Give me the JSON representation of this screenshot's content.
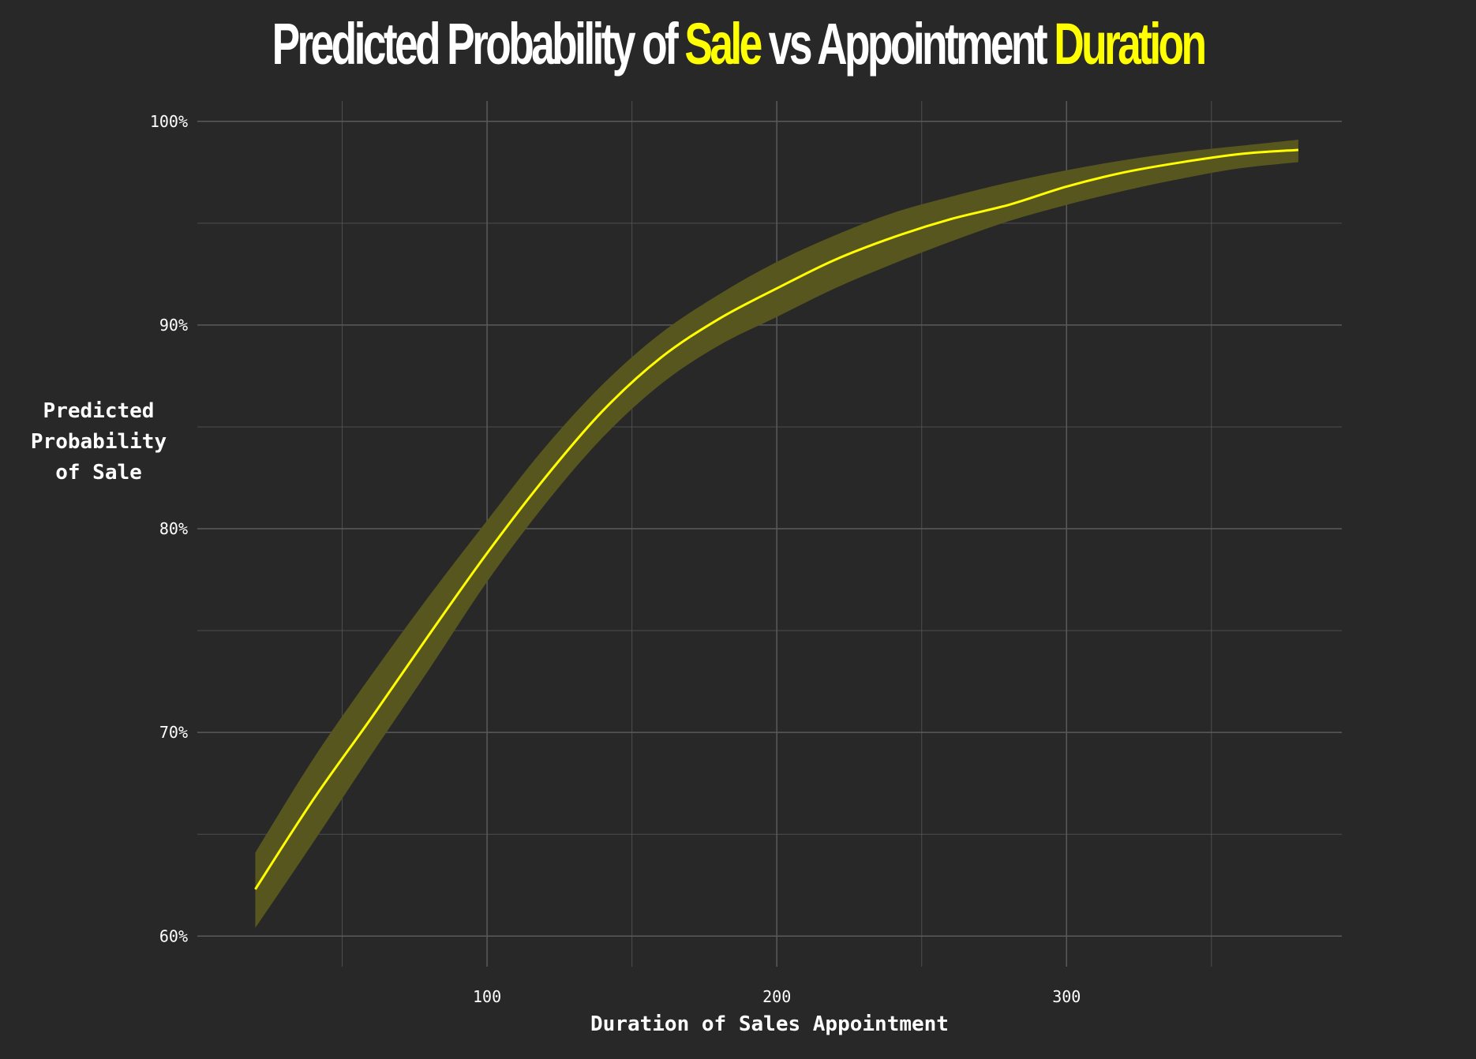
{
  "title": {
    "parts": [
      {
        "text": "Predicted Probability of ",
        "highlight": false
      },
      {
        "text": "Sale",
        "highlight": true
      },
      {
        "text": " vs Appointment ",
        "highlight": false
      },
      {
        "text": "Duration",
        "highlight": true
      }
    ]
  },
  "colors": {
    "background": "#282828",
    "grid": "#5a5a5a",
    "line": "#ffff00",
    "band": "#58561f",
    "text": "#ffffff"
  },
  "chart_data": {
    "type": "line",
    "title": "Predicted Probability of Sale vs Appointment Duration",
    "xlabel": "Duration of Sales Appointment",
    "ylabel_lines": [
      "Predicted",
      "Probability",
      "of Sale"
    ],
    "xlim": [
      0,
      395
    ],
    "ylim": [
      0.585,
      1.01
    ],
    "x_ticks": [
      100,
      200,
      300
    ],
    "x_tick_labels": [
      "100",
      "200",
      "300"
    ],
    "x_minor_ticks": [
      50,
      150,
      250,
      350
    ],
    "y_ticks": [
      0.6,
      0.7,
      0.8,
      0.9,
      1.0
    ],
    "y_tick_labels": [
      "60%",
      "70%",
      "80%",
      "90%",
      "100%"
    ],
    "y_minor_ticks": [
      0.65,
      0.75,
      0.85,
      0.95
    ],
    "grid": true,
    "series": [
      {
        "x": [
          20,
          40,
          60,
          80,
          100,
          120,
          140,
          160,
          180,
          200,
          220,
          240,
          260,
          280,
          300,
          320,
          340,
          360,
          380
        ],
        "y": [
          0.623,
          0.667,
          0.707,
          0.748,
          0.788,
          0.825,
          0.858,
          0.884,
          0.903,
          0.918,
          0.932,
          0.943,
          0.952,
          0.959,
          0.968,
          0.975,
          0.98,
          0.984,
          0.986
        ],
        "lower": [
          0.604,
          0.646,
          0.689,
          0.731,
          0.774,
          0.812,
          0.845,
          0.871,
          0.89,
          0.904,
          0.918,
          0.93,
          0.941,
          0.951,
          0.959,
          0.966,
          0.972,
          0.977,
          0.98
        ],
        "upper": [
          0.641,
          0.687,
          0.728,
          0.767,
          0.804,
          0.84,
          0.871,
          0.896,
          0.915,
          0.931,
          0.944,
          0.955,
          0.963,
          0.97,
          0.976,
          0.981,
          0.985,
          0.988,
          0.991
        ]
      }
    ]
  }
}
